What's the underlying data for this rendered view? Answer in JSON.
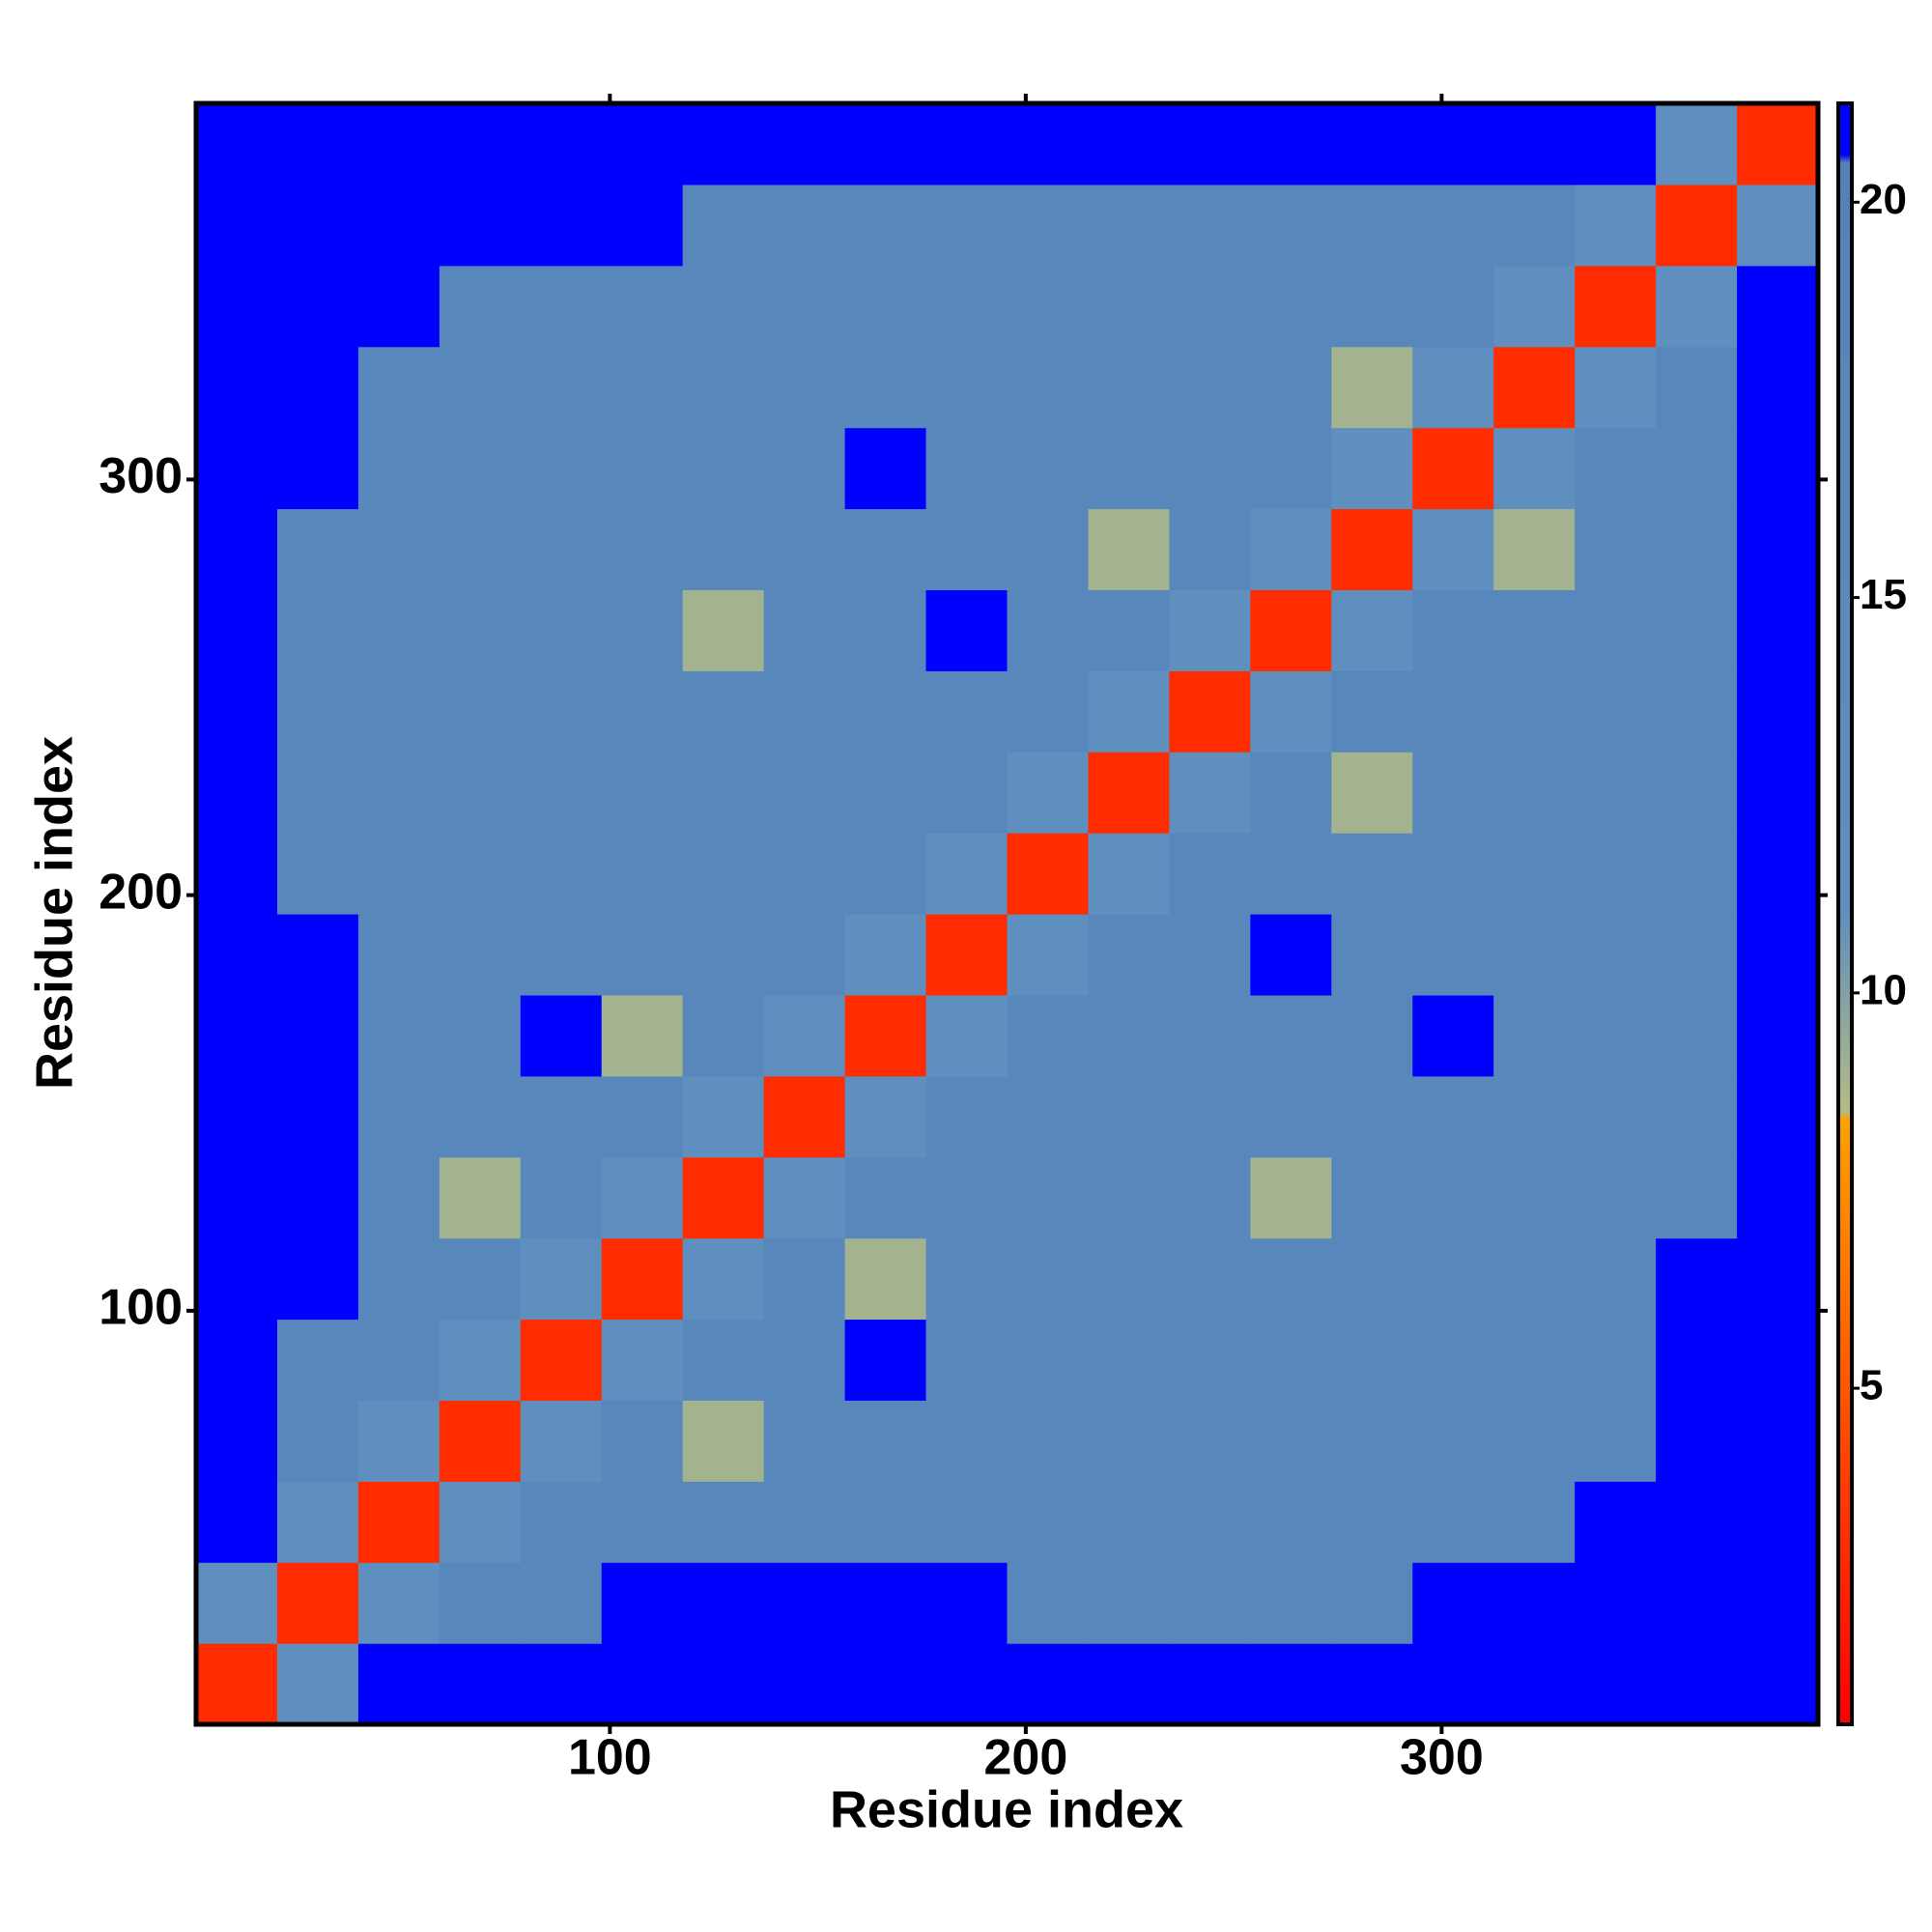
{
  "chart_data": {
    "type": "heatmap",
    "xlabel": "Residue index",
    "ylabel": "Residue index",
    "xbins": [
      0.5,
      20,
      39.5,
      59,
      78.5,
      98,
      117.5,
      137,
      156.5,
      176,
      195.5,
      215,
      234.5,
      254,
      273.5,
      293,
      312.5,
      332,
      351.5,
      371,
      390.5
    ],
    "ybins": [
      0.5,
      20,
      39.5,
      59,
      78.5,
      98,
      117.5,
      137,
      156.5,
      176,
      195.5,
      215,
      234.5,
      254,
      273.5,
      293,
      312.5,
      332,
      351.5,
      371,
      390.5
    ],
    "xlim": [
      0.5,
      390.5
    ],
    "ylim": [
      0.5,
      390.5
    ],
    "xticks": [
      100,
      200,
      300
    ],
    "yticks": [
      100,
      200,
      300
    ],
    "zlim": [
      0.75,
      21.25
    ],
    "zticks": [
      5,
      10,
      15,
      20
    ],
    "colorscale": [
      [
        0.75,
        "#ff0000"
      ],
      [
        4,
        "#ff4000"
      ],
      [
        8.4,
        "#ffa000"
      ],
      [
        8.5,
        "#b4bc84"
      ],
      [
        11,
        "#5f8fbf"
      ],
      [
        20.5,
        "#5282b8"
      ],
      [
        20.6,
        "#0000ff"
      ],
      [
        21.25,
        "#0000ff"
      ]
    ],
    "z": [
      [
        3,
        11,
        21,
        21,
        21,
        21,
        21,
        21,
        21,
        21,
        21,
        21,
        21,
        21,
        21,
        21,
        21,
        21,
        21,
        21
      ],
      [
        11,
        3,
        11,
        16,
        16,
        21,
        21,
        21,
        21,
        21,
        16,
        16,
        16,
        16,
        16,
        21,
        21,
        21,
        21,
        21
      ],
      [
        21,
        11,
        3,
        11,
        16,
        16,
        16,
        16,
        16,
        16,
        16,
        16,
        16,
        16,
        16,
        16,
        16,
        21,
        21,
        21
      ],
      [
        21,
        16,
        11,
        3,
        11,
        16,
        9,
        16,
        16,
        16,
        16,
        16,
        16,
        16,
        16,
        16,
        16,
        16,
        21,
        21
      ],
      [
        21,
        16,
        16,
        11,
        3,
        11,
        16,
        16,
        21,
        16,
        16,
        16,
        16,
        16,
        16,
        16,
        16,
        16,
        21,
        21
      ],
      [
        21,
        21,
        16,
        16,
        11,
        3,
        11,
        16,
        9,
        16,
        16,
        16,
        16,
        16,
        16,
        16,
        16,
        16,
        21,
        21
      ],
      [
        21,
        21,
        16,
        9,
        16,
        11,
        3,
        11,
        16,
        16,
        16,
        16,
        16,
        9,
        16,
        16,
        16,
        16,
        16,
        21
      ],
      [
        21,
        21,
        16,
        16,
        16,
        16,
        11,
        3,
        11,
        16,
        16,
        16,
        16,
        16,
        16,
        16,
        16,
        16,
        16,
        21
      ],
      [
        21,
        21,
        16,
        16,
        21,
        9,
        16,
        11,
        3,
        11,
        16,
        16,
        16,
        16,
        16,
        21,
        16,
        16,
        16,
        21
      ],
      [
        21,
        21,
        16,
        16,
        16,
        16,
        16,
        16,
        11,
        3,
        11,
        16,
        16,
        21,
        16,
        16,
        16,
        16,
        16,
        21
      ],
      [
        21,
        16,
        16,
        16,
        16,
        16,
        16,
        16,
        16,
        11,
        3,
        11,
        16,
        16,
        16,
        16,
        16,
        16,
        16,
        21
      ],
      [
        21,
        16,
        16,
        16,
        16,
        16,
        16,
        16,
        16,
        16,
        11,
        3,
        11,
        16,
        9,
        16,
        16,
        16,
        16,
        21
      ],
      [
        21,
        16,
        16,
        16,
        16,
        16,
        16,
        16,
        16,
        16,
        16,
        11,
        3,
        11,
        16,
        16,
        16,
        16,
        16,
        21
      ],
      [
        21,
        16,
        16,
        16,
        16,
        16,
        9,
        16,
        16,
        21,
        16,
        16,
        11,
        3,
        11,
        16,
        16,
        16,
        16,
        21
      ],
      [
        21,
        16,
        16,
        16,
        16,
        16,
        16,
        16,
        16,
        16,
        16,
        9,
        16,
        11,
        3,
        11,
        9,
        16,
        16,
        21
      ],
      [
        21,
        21,
        16,
        16,
        16,
        16,
        16,
        16,
        21,
        16,
        16,
        16,
        16,
        16,
        11,
        3,
        11,
        16,
        16,
        21
      ],
      [
        21,
        21,
        16,
        16,
        16,
        16,
        16,
        16,
        16,
        16,
        16,
        16,
        16,
        16,
        9,
        11,
        3,
        11,
        16,
        21
      ],
      [
        21,
        21,
        21,
        16,
        16,
        16,
        16,
        16,
        16,
        16,
        16,
        16,
        16,
        16,
        16,
        16,
        11,
        3,
        11,
        21
      ],
      [
        21,
        21,
        21,
        21,
        21,
        21,
        16,
        16,
        16,
        16,
        16,
        16,
        16,
        16,
        16,
        16,
        16,
        11,
        3,
        11
      ],
      [
        21,
        21,
        21,
        21,
        21,
        21,
        21,
        21,
        21,
        21,
        21,
        21,
        21,
        21,
        21,
        21,
        21,
        21,
        11,
        3
      ]
    ]
  }
}
